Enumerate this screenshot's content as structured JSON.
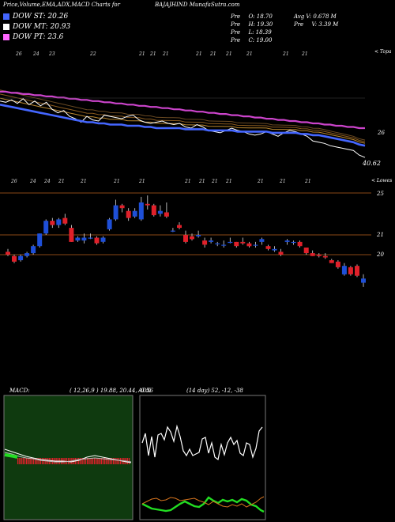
{
  "header": {
    "title_left": "Price,Volume,EMA,ADX,MACD Charts for",
    "symbol": "BAJAJHIND",
    "site": "MunafaSutra.com",
    "stats": [
      [
        "Pre",
        "O: 18.70"
      ],
      [
        "Avg V: 0.678",
        "M"
      ],
      [
        "Pre",
        "H: 19.30"
      ],
      [
        "Pre",
        "V: 3.39 M"
      ],
      [
        "Pre",
        "L: 18.39"
      ],
      [
        "Pre",
        "C: 19.00"
      ]
    ]
  },
  "legend": [
    {
      "label": "DOW ST: 20.26",
      "color": "#4466ff"
    },
    {
      "label": "DOW MT: 20.93",
      "color": "#ffffff"
    },
    {
      "label": "DOW PT: 23.6",
      "color": "#ff66ff"
    }
  ],
  "topics_label": "< Topa",
  "lows_label": "< Lowes",
  "ema_panel": {
    "tick_labels": [
      "26"
    ],
    "price_label": "40.62",
    "top_dates": [
      "26",
      "24",
      "23",
      "22",
      "21",
      "21",
      "21",
      "21",
      "21",
      "21",
      "21",
      "21",
      "21",
      "21"
    ],
    "bottom_dates": [
      "26",
      "24",
      "24",
      "21",
      "21",
      "21",
      "21",
      "21",
      "21",
      "21",
      "21",
      "21",
      "21",
      "21"
    ]
  },
  "price_panel": {
    "levels": [
      "25",
      "21",
      "20"
    ]
  },
  "macd": {
    "label": "MACD:",
    "values": "( 12,26,9 ) 19.88, 20.44, -0.56"
  },
  "adx": {
    "label": "ADX",
    "values": "(14  day) 52,  -12,  -38"
  },
  "colors": {
    "bull": "#1e4fd8",
    "bear": "#e0202a",
    "level": "#b8621e",
    "macd_bg": "#0f3a0f",
    "ema_long": "#cc44cc",
    "ema_mid": "#b8862e"
  },
  "chart_data": [
    {
      "type": "candlestick",
      "title": "BAJAJHIND",
      "series": [
        {
          "name": "candles",
          "ohlc": [
            [
              20.9,
              21.1,
              20.6,
              20.7
            ],
            [
              20.6,
              20.7,
              20.1,
              20.2
            ],
            [
              20.3,
              20.7,
              20.2,
              20.6
            ],
            [
              20.6,
              20.9,
              20.5,
              20.8
            ],
            [
              20.8,
              21.4,
              20.7,
              21.3
            ],
            [
              21.3,
              22.2,
              21.2,
              22.2
            ],
            [
              22.2,
              23.2,
              22.1,
              23.1
            ],
            [
              23.1,
              23.3,
              22.6,
              22.8
            ],
            [
              22.8,
              23.3,
              22.6,
              23.2
            ],
            [
              23.3,
              23.6,
              22.8,
              22.9
            ],
            [
              22.6,
              22.8,
              21.6,
              21.6
            ],
            [
              21.7,
              22.0,
              21.6,
              21.9
            ],
            [
              21.7,
              22.2,
              21.5,
              21.9
            ],
            [
              21.9,
              22.2,
              21.8,
              21.9
            ],
            [
              21.9,
              22.0,
              21.4,
              21.5
            ],
            [
              21.6,
              22.0,
              21.5,
              21.9
            ],
            [
              22.5,
              23.3,
              22.4,
              23.2
            ],
            [
              23.2,
              24.6,
              23.1,
              24.2
            ],
            [
              24.2,
              24.3,
              23.7,
              24.0
            ],
            [
              23.8,
              24.0,
              23.1,
              23.3
            ],
            [
              23.4,
              24.0,
              23.3,
              23.8
            ],
            [
              23.2,
              24.8,
              23.1,
              24.4
            ],
            [
              24.3,
              24.9,
              23.9,
              24.2
            ],
            [
              24.2,
              24.3,
              23.4,
              23.5
            ],
            [
              23.6,
              24.2,
              23.4,
              23.8
            ],
            [
              23.7,
              24.4,
              23.3,
              23.4
            ],
            [
              22.4,
              22.6,
              22.3,
              22.4
            ],
            [
              22.8,
              23.0,
              22.5,
              22.6
            ],
            [
              22.1,
              22.4,
              21.5,
              21.6
            ],
            [
              22.0,
              22.2,
              21.7,
              21.8
            ],
            [
              22.0,
              22.4,
              21.9,
              22.1
            ],
            [
              21.7,
              21.9,
              21.2,
              21.4
            ],
            [
              21.6,
              21.9,
              21.5,
              21.7
            ],
            [
              21.5,
              21.6,
              21.3,
              21.5
            ],
            [
              21.4,
              21.7,
              21.2,
              21.4
            ],
            [
              21.6,
              21.9,
              21.5,
              21.6
            ],
            [
              21.6,
              21.6,
              21.2,
              21.3
            ],
            [
              21.6,
              21.9,
              21.4,
              21.5
            ],
            [
              21.5,
              21.6,
              21.2,
              21.3
            ],
            [
              21.4,
              21.6,
              21.2,
              21.4
            ],
            [
              21.6,
              21.9,
              21.4,
              21.8
            ],
            [
              21.3,
              21.4,
              21.0,
              21.1
            ],
            [
              21.0,
              21.3,
              20.9,
              21.1
            ],
            [
              20.9,
              21.1,
              20.6,
              20.7
            ],
            [
              21.6,
              21.8,
              21.4,
              21.7
            ],
            [
              21.6,
              21.7,
              21.4,
              21.6
            ],
            [
              21.6,
              21.7,
              21.2,
              21.3
            ],
            [
              21.2,
              21.2,
              20.7,
              20.8
            ],
            [
              20.8,
              21.0,
              20.6,
              20.6
            ],
            [
              20.7,
              20.8,
              20.5,
              20.6
            ],
            [
              20.6,
              20.8,
              20.4,
              20.5
            ],
            [
              20.3,
              20.4,
              20.1,
              20.1
            ],
            [
              20.2,
              20.3,
              19.7,
              19.8
            ],
            [
              19.3,
              20.1,
              19.2,
              19.9
            ],
            [
              19.8,
              19.9,
              19.2,
              19.3
            ],
            [
              19.9,
              20.0,
              19.1,
              19.2
            ],
            [
              18.7,
              19.3,
              18.4,
              19.0
            ]
          ]
        }
      ]
    },
    {
      "type": "line",
      "title": "EMA",
      "series": [
        {
          "name": "price",
          "color": "#ffffff",
          "values": [
            25.6,
            25.5,
            25.7,
            25.4,
            25.8,
            25.3,
            25.6,
            25.2,
            25.5,
            24.9,
            24.6,
            24.8,
            24.3,
            24.1,
            23.8,
            24.3,
            24.0,
            23.9,
            24.4,
            24.3,
            24.2,
            24.1,
            24.3,
            24.4,
            24.0,
            23.8,
            23.7,
            23.8,
            23.9,
            23.7,
            23.6,
            23.7,
            23.4,
            23.3,
            23.6,
            23.4,
            23.1,
            23.0,
            22.9,
            23.1,
            23.3,
            23.1,
            23.0,
            22.8,
            22.7,
            22.8,
            23.0,
            22.8,
            22.6,
            22.9,
            23.1,
            23.0,
            22.8,
            22.6,
            22.2,
            22.1,
            22.0,
            21.8,
            21.7,
            21.6,
            21.5,
            21.4,
            21.0,
            20.8
          ]
        },
        {
          "name": "ema_short",
          "color": "#4466ff",
          "values": [
            25.3,
            25.2,
            25.1,
            25.0,
            24.9,
            24.8,
            24.7,
            24.6,
            24.5,
            24.4,
            24.3,
            24.2,
            24.1,
            24.0,
            23.9,
            23.8,
            23.8,
            23.7,
            23.7,
            23.6,
            23.6,
            23.6,
            23.5,
            23.5,
            23.5,
            23.4,
            23.4,
            23.3,
            23.3,
            23.3,
            23.3,
            23.3,
            23.2,
            23.2,
            23.2,
            23.2,
            23.1,
            23.1,
            23.1,
            23.1,
            23.1,
            23.0,
            23.0,
            23.0,
            23.0,
            23.0,
            23.0,
            22.9,
            22.9,
            22.9,
            22.9,
            22.9,
            22.8,
            22.8,
            22.7,
            22.7,
            22.6,
            22.5,
            22.4,
            22.3,
            22.2,
            22.1,
            21.9,
            21.8
          ]
        },
        {
          "name": "ema_long",
          "color": "#cc44cc",
          "values": [
            26.4,
            26.4,
            26.3,
            26.3,
            26.2,
            26.2,
            26.1,
            26.1,
            26.0,
            26.0,
            25.9,
            25.9,
            25.8,
            25.8,
            25.7,
            25.7,
            25.6,
            25.6,
            25.5,
            25.5,
            25.4,
            25.4,
            25.3,
            25.3,
            25.2,
            25.2,
            25.1,
            25.1,
            25.0,
            25.0,
            24.9,
            24.9,
            24.8,
            24.8,
            24.7,
            24.7,
            24.6,
            24.6,
            24.5,
            24.5,
            24.4,
            24.4,
            24.3,
            24.3,
            24.2,
            24.2,
            24.1,
            24.1,
            24.0,
            24.0,
            23.9,
            23.9,
            23.8,
            23.8,
            23.7,
            23.7,
            23.6,
            23.6,
            23.5,
            23.5,
            23.4,
            23.4,
            23.3,
            23.3
          ]
        }
      ]
    }
  ]
}
